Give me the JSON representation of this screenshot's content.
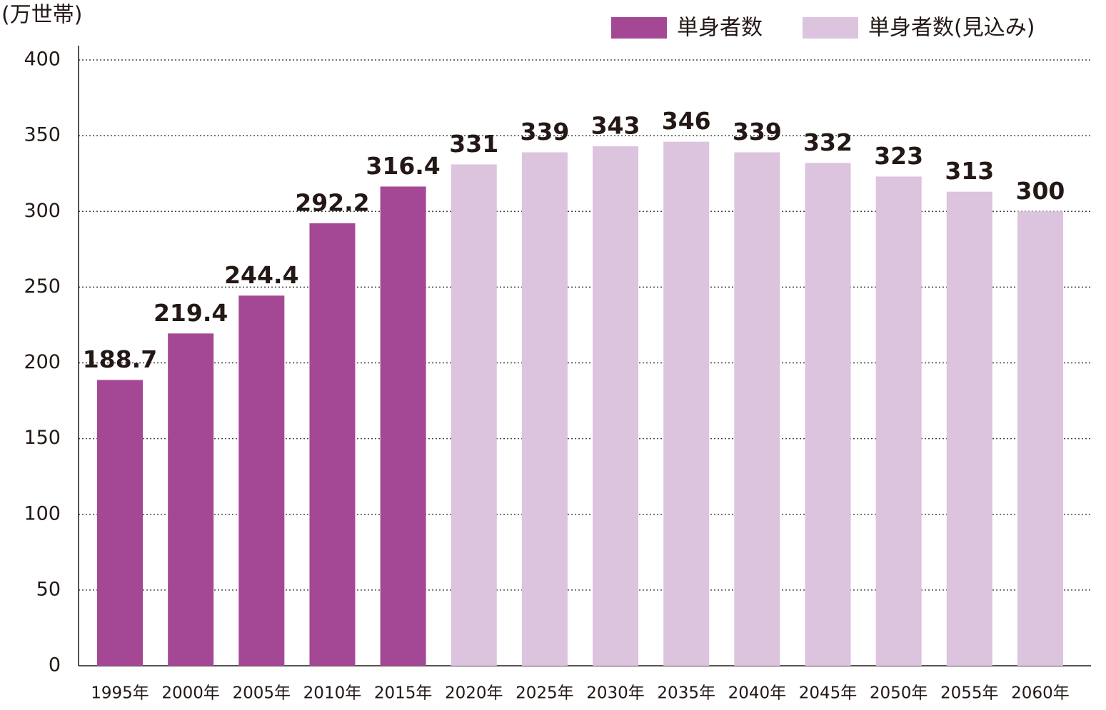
{
  "chart_data": {
    "type": "bar",
    "ylabel": "(万世帯)",
    "categories": [
      "1995年",
      "2000年",
      "2005年",
      "2010年",
      "2015年",
      "2020年",
      "2025年",
      "2030年",
      "2035年",
      "2040年",
      "2045年",
      "2050年",
      "2055年",
      "2060年"
    ],
    "series": [
      {
        "name": "単身者数",
        "color": "#a44896",
        "values": [
          188.7,
          219.4,
          244.4,
          292.2,
          316.4,
          null,
          null,
          null,
          null,
          null,
          null,
          null,
          null,
          null
        ]
      },
      {
        "name": "単身者数(見込み)",
        "color": "#dcc3de",
        "values": [
          null,
          null,
          null,
          null,
          null,
          331,
          339,
          343,
          346,
          339,
          332,
          323,
          313,
          300
        ]
      }
    ],
    "ylim": [
      0,
      400
    ],
    "yticks": [
      0,
      50,
      100,
      150,
      200,
      250,
      300,
      350,
      400
    ],
    "grid": true,
    "legend": "top-right"
  }
}
